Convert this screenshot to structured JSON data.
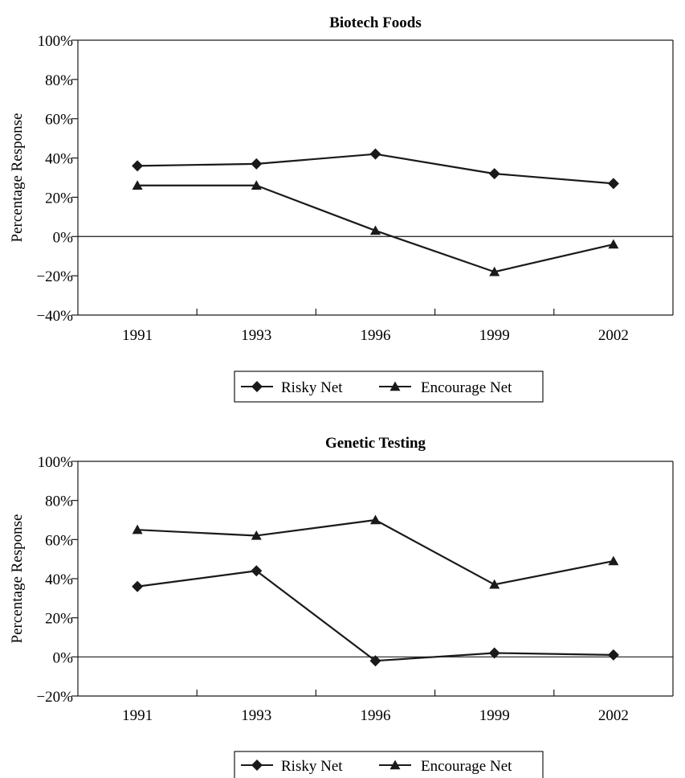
{
  "chart_data": [
    {
      "type": "line",
      "title": "Biotech Foods",
      "xlabel": "",
      "ylabel": "Percentage Response",
      "categories": [
        "1991",
        "1993",
        "1996",
        "1999",
        "2002"
      ],
      "ylim": [
        -40,
        100
      ],
      "yticks": [
        "−40%",
        "−20%",
        "0%",
        "20%",
        "40%",
        "60%",
        "80%",
        "100%"
      ],
      "ytick_values": [
        -40,
        -20,
        0,
        20,
        40,
        60,
        80,
        100
      ],
      "grid": false,
      "legend_position": "bottom",
      "series": [
        {
          "name": "Risky Net",
          "marker": "diamond",
          "values": [
            36,
            37,
            42,
            32,
            27
          ]
        },
        {
          "name": "Encourage Net",
          "marker": "triangle",
          "values": [
            26,
            26,
            3,
            -18,
            -4
          ]
        }
      ]
    },
    {
      "type": "line",
      "title": "Genetic Testing",
      "xlabel": "",
      "ylabel": "Percentage Response",
      "categories": [
        "1991",
        "1993",
        "1996",
        "1999",
        "2002"
      ],
      "ylim": [
        -20,
        100
      ],
      "yticks": [
        "−20%",
        "0%",
        "20%",
        "40%",
        "60%",
        "80%",
        "100%"
      ],
      "ytick_values": [
        -20,
        0,
        20,
        40,
        60,
        80,
        100
      ],
      "grid": false,
      "legend_position": "bottom",
      "series": [
        {
          "name": "Risky Net",
          "marker": "diamond",
          "values": [
            36,
            44,
            -2,
            2,
            1
          ]
        },
        {
          "name": "Encourage Net",
          "marker": "triangle",
          "values": [
            65,
            62,
            70,
            37,
            49
          ]
        }
      ]
    }
  ],
  "colors": {
    "line": "#1a1a1a",
    "background": "#ffffff"
  }
}
